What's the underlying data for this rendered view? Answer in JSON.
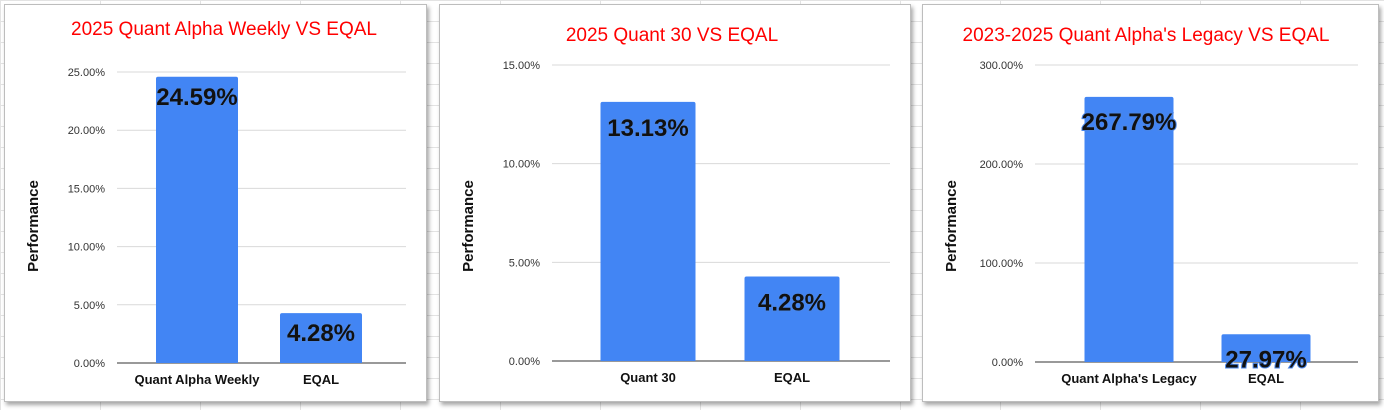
{
  "colors": {
    "bar": "#4285f4",
    "title": "#ff0000",
    "grid": "#d9d9d9",
    "axis": "#333333"
  },
  "chart_data": [
    {
      "type": "bar",
      "title": "2025 Quant Alpha Weekly VS EQAL",
      "xlabel": "",
      "ylabel": "Performance",
      "categories": [
        "Quant Alpha Weekly",
        "EQAL"
      ],
      "values": [
        24.59,
        4.28
      ],
      "data_labels": [
        "24.59%",
        "4.28%"
      ],
      "ylim": [
        0,
        25
      ],
      "yticks": [
        0,
        5,
        10,
        15,
        20,
        25
      ],
      "ytick_labels": [
        "0.00%",
        "5.00%",
        "10.00%",
        "15.00%",
        "20.00%",
        "25.00%"
      ],
      "grid": true,
      "legend": "none"
    },
    {
      "type": "bar",
      "title": "2025 Quant 30 VS EQAL",
      "xlabel": "",
      "ylabel": "Performance",
      "categories": [
        "Quant 30",
        "EQAL"
      ],
      "values": [
        13.13,
        4.28
      ],
      "data_labels": [
        "13.13%",
        "4.28%"
      ],
      "ylim": [
        0,
        15
      ],
      "yticks": [
        0,
        5,
        10,
        15
      ],
      "ytick_labels": [
        "0.00%",
        "5.00%",
        "10.00%",
        "15.00%"
      ],
      "grid": true,
      "legend": "none"
    },
    {
      "type": "bar",
      "title": "2023-2025 Quant Alpha's Legacy VS EQAL",
      "xlabel": "",
      "ylabel": "Performance",
      "categories": [
        "Quant Alpha's Legacy",
        "EQAL"
      ],
      "values": [
        267.79,
        27.97
      ],
      "data_labels": [
        "267.79%",
        "27.97%"
      ],
      "ylim": [
        0,
        300
      ],
      "yticks": [
        0,
        100,
        200,
        300
      ],
      "ytick_labels": [
        "0.00%",
        "100.00%",
        "200.00%",
        "300.00%"
      ],
      "grid": true,
      "legend": "none"
    }
  ]
}
